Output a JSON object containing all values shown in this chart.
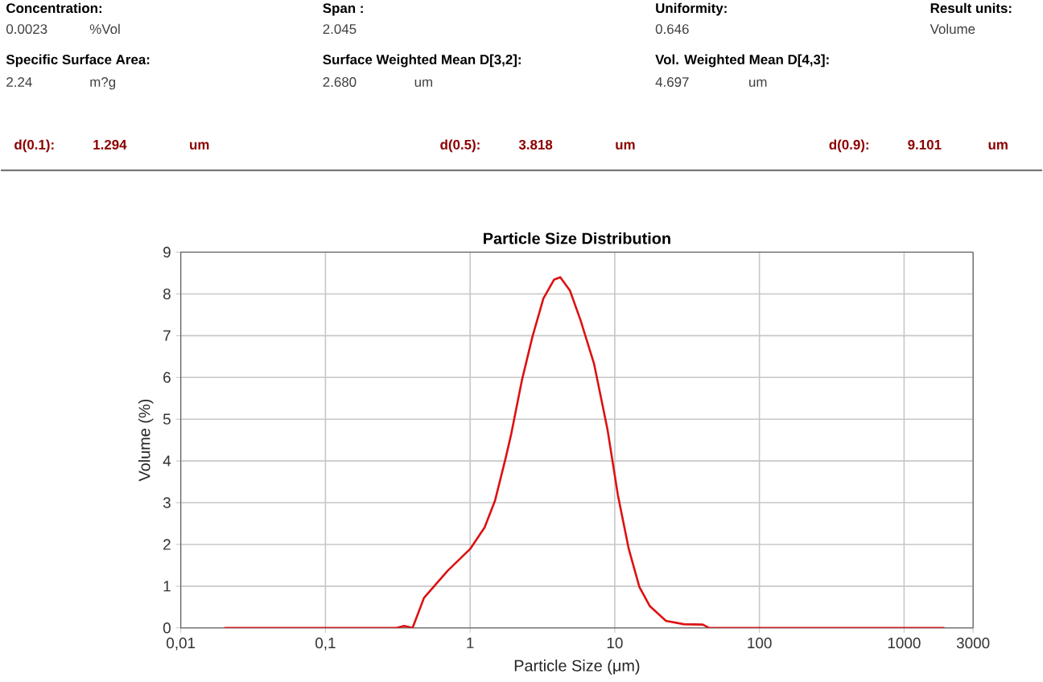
{
  "chart_data": {
    "type": "line",
    "title": "Particle Size Distribution",
    "xlabel": "Particle Size (μm)",
    "ylabel": "Volume (%)",
    "log": "x",
    "grid": true,
    "marker": "none",
    "line_style": "solid",
    "xlim": [
      0.01,
      3000
    ],
    "ylim": [
      0,
      9
    ],
    "xticks": [
      {
        "value": 0.01,
        "label": "0,01"
      },
      {
        "value": 0.1,
        "label": "0,1"
      },
      1,
      10,
      100,
      1000,
      3000
    ],
    "yticks": [
      0,
      1,
      2,
      3,
      4,
      5,
      6,
      7,
      8,
      9
    ],
    "series": [
      {
        "color": "#dd1111",
        "x": [
          0.02,
          0.1,
          0.31,
          0.35,
          0.4,
          0.48,
          0.7,
          1.0,
          1.26,
          1.49,
          1.77,
          1.92,
          2.28,
          2.7,
          3.21,
          3.8,
          4.2,
          4.9,
          5.8,
          7.2,
          8.9,
          10.5,
          12.5,
          14.8,
          17.5,
          22.6,
          30,
          40.6,
          45,
          100,
          1900
        ],
        "values": [
          0,
          0,
          0,
          0.05,
          0,
          0.72,
          1.37,
          1.89,
          2.41,
          3.06,
          4.1,
          4.63,
          5.93,
          6.98,
          7.89,
          8.34,
          8.4,
          8.08,
          7.37,
          6.32,
          4.76,
          3.19,
          1.89,
          0.98,
          0.52,
          0.17,
          0.09,
          0.08,
          0,
          0,
          0
        ]
      }
    ],
    "annotations": [
      "Concentration:",
      "0.0023",
      "%Vol",
      "Span :",
      "2.045",
      "Uniformity:",
      "0.646",
      "Result units:",
      "Volume",
      "Specific Surface Area:",
      "2.24",
      "m?g",
      "Surface Weighted Mean D[3,2]:",
      "2.680",
      "um",
      "Vol. Weighted Mean D[4,3]:",
      "4.697",
      "um",
      "d(0.1):",
      "1.294",
      "um",
      "d(0.5):",
      "3.818",
      "um",
      "d(0.9):",
      "9.101",
      "um"
    ]
  }
}
